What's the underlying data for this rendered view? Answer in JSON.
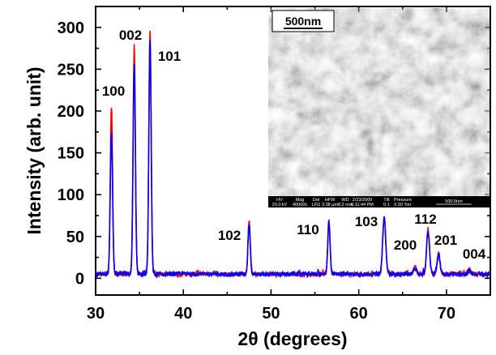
{
  "chart_data": {
    "type": "line",
    "xlabel": "2θ (degrees)",
    "ylabel": "Intensity (arb. unit)",
    "xlim": [
      30,
      75
    ],
    "ylim": [
      -20,
      325
    ],
    "x_ticks": [
      30,
      40,
      50,
      60,
      70
    ],
    "y_ticks": [
      0,
      50,
      100,
      150,
      200,
      250,
      300
    ],
    "grid": false,
    "legend": "none",
    "baseline": 5,
    "series": [
      {
        "color": "#ff0000",
        "peaks": [
          {
            "x": 31.8,
            "y": 205
          },
          {
            "x": 34.4,
            "y": 275
          },
          {
            "x": 36.2,
            "y": 294
          },
          {
            "x": 47.5,
            "y": 70
          },
          {
            "x": 56.6,
            "y": 66
          },
          {
            "x": 62.9,
            "y": 73
          },
          {
            "x": 66.4,
            "y": 14
          },
          {
            "x": 67.9,
            "y": 57
          },
          {
            "x": 69.1,
            "y": 30
          },
          {
            "x": 72.6,
            "y": 11
          }
        ]
      },
      {
        "color": "#0000ff",
        "peaks": [
          {
            "x": 31.8,
            "y": 173
          },
          {
            "x": 34.4,
            "y": 258
          },
          {
            "x": 36.2,
            "y": 287
          },
          {
            "x": 47.5,
            "y": 65
          },
          {
            "x": 56.6,
            "y": 69
          },
          {
            "x": 62.9,
            "y": 74
          },
          {
            "x": 66.4,
            "y": 12
          },
          {
            "x": 67.9,
            "y": 55
          },
          {
            "x": 69.1,
            "y": 28
          },
          {
            "x": 72.6,
            "y": 9
          }
        ]
      }
    ],
    "annotations": [
      {
        "text": "100",
        "x": 31.8
      },
      {
        "text": "002",
        "x": 34.4
      },
      {
        "text": "101",
        "x": 36.2
      },
      {
        "text": "102",
        "x": 47.5
      },
      {
        "text": "110",
        "x": 56.6
      },
      {
        "text": "103",
        "x": 62.9
      },
      {
        "text": "112",
        "x": 67.9
      },
      {
        "text": "200",
        "x": 66.4
      },
      {
        "text": "201",
        "x": 69.1
      },
      {
        "text": "004",
        "x": 72.6
      }
    ]
  },
  "inset": {
    "scale_bar_label": "500nm",
    "meta_headers": [
      "HV",
      "Mag",
      "Det",
      "HFW",
      "WD",
      "2/23/2009",
      "Tilt",
      "Pressure"
    ],
    "meta_values": [
      "20.0 kV",
      "40000x",
      "LFD",
      "3.38 μm",
      "8.2 mm",
      "6:11:44 PM",
      "0.1",
      "0.30 Torr"
    ],
    "meta_scale": "500.0nm"
  }
}
